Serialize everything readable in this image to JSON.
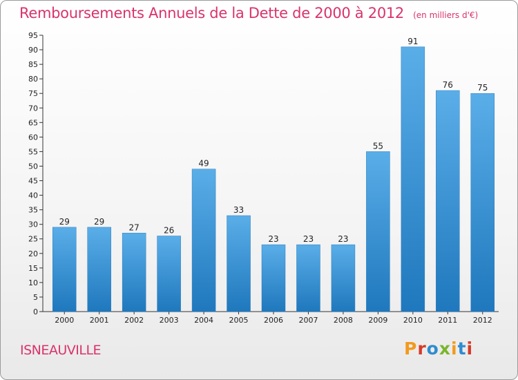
{
  "header": {
    "title": "Remboursements Annuels de la Dette de 2000 à 2012",
    "unit": "(en milliers d'€)"
  },
  "footer": {
    "city": "ISNEAUVILLE",
    "brand": "Proxiti"
  },
  "colors": {
    "accent": "#d9336b",
    "bar_light": "#5aaee8",
    "bar_dark": "#1f78bd",
    "brand_letters": [
      "#f29a1d",
      "#d63a2a",
      "#2f8ccf",
      "#7ab52b",
      "#f29a1d",
      "#2f8ccf",
      "#d63a2a"
    ]
  },
  "chart_data": {
    "type": "bar",
    "categories": [
      "2000",
      "2001",
      "2002",
      "2003",
      "2004",
      "2005",
      "2006",
      "2007",
      "2008",
      "2009",
      "2010",
      "2011",
      "2012"
    ],
    "values": [
      29,
      29,
      27,
      26,
      49,
      33,
      23,
      23,
      23,
      55,
      91,
      76,
      75
    ],
    "ylim": [
      0,
      95
    ],
    "ytick_step": 5,
    "grid": false,
    "data_labels": true
  }
}
